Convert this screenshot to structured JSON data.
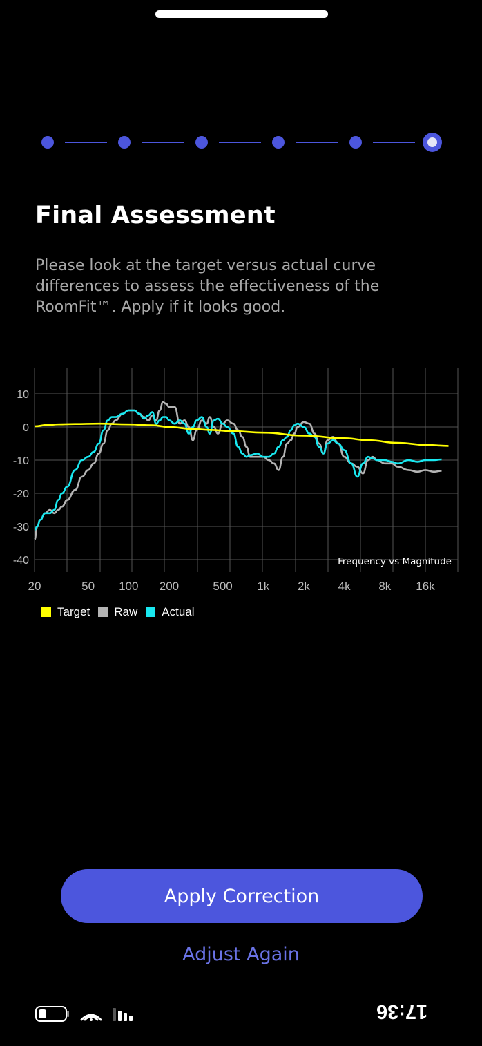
{
  "steps": {
    "count": 6,
    "active_index": 5
  },
  "header": {
    "title": "Final Assessment",
    "description": "Please look at the target versus actual curve differences to assess the effectiveness of the RoomFit™. Apply if it looks good."
  },
  "chart_data": {
    "type": "line",
    "title": "Frequency vs Magnitude",
    "x_scale": "log",
    "xlim": [
      20,
      25000
    ],
    "ylim": [
      -42,
      16
    ],
    "grid": true,
    "legend_position": "bottom-left",
    "x_ticks": [
      {
        "value": 20,
        "label": "20"
      },
      {
        "value": 50,
        "label": "50"
      },
      {
        "value": 100,
        "label": "100"
      },
      {
        "value": 200,
        "label": "200"
      },
      {
        "value": 500,
        "label": "500"
      },
      {
        "value": 1000,
        "label": "1k"
      },
      {
        "value": 2000,
        "label": "2k"
      },
      {
        "value": 4000,
        "label": "4k"
      },
      {
        "value": 8000,
        "label": "8k"
      },
      {
        "value": 16000,
        "label": "16k"
      }
    ],
    "y_ticks": [
      10,
      0,
      -10,
      -20,
      -30,
      -40
    ],
    "series": [
      {
        "name": "Target",
        "color": "#ffff00",
        "points": [
          [
            20,
            0.2
          ],
          [
            25,
            0.6
          ],
          [
            30,
            0.8
          ],
          [
            40,
            0.9
          ],
          [
            60,
            1.0
          ],
          [
            100,
            0.8
          ],
          [
            150,
            0.5
          ],
          [
            200,
            0
          ],
          [
            300,
            -0.6
          ],
          [
            400,
            -0.9
          ],
          [
            600,
            -1.3
          ],
          [
            1000,
            -1.7
          ],
          [
            2000,
            -2.6
          ],
          [
            4000,
            -3.4
          ],
          [
            6000,
            -4
          ],
          [
            10000,
            -4.8
          ],
          [
            16000,
            -5.4
          ],
          [
            22000,
            -5.7
          ]
        ]
      },
      {
        "name": "Raw",
        "color": "#b4b4b4",
        "points": [
          [
            20,
            -34
          ],
          [
            21,
            -30
          ],
          [
            22,
            -28
          ],
          [
            24,
            -26
          ],
          [
            26,
            -25
          ],
          [
            28,
            -26
          ],
          [
            30,
            -25
          ],
          [
            32,
            -24
          ],
          [
            35,
            -22
          ],
          [
            40,
            -19
          ],
          [
            45,
            -15
          ],
          [
            50,
            -13
          ],
          [
            55,
            -11
          ],
          [
            60,
            -8
          ],
          [
            65,
            -5
          ],
          [
            70,
            -1
          ],
          [
            75,
            1
          ],
          [
            80,
            2
          ],
          [
            90,
            4
          ],
          [
            100,
            5
          ],
          [
            110,
            5
          ],
          [
            120,
            4
          ],
          [
            130,
            3
          ],
          [
            140,
            2
          ],
          [
            150,
            3.5
          ],
          [
            160,
            2
          ],
          [
            170,
            5
          ],
          [
            180,
            7.5
          ],
          [
            190,
            7
          ],
          [
            200,
            6
          ],
          [
            220,
            6
          ],
          [
            240,
            1
          ],
          [
            260,
            2
          ],
          [
            280,
            0
          ],
          [
            300,
            -4
          ],
          [
            320,
            -1
          ],
          [
            350,
            2
          ],
          [
            380,
            1
          ],
          [
            400,
            3
          ],
          [
            430,
            0
          ],
          [
            460,
            -2
          ],
          [
            500,
            1
          ],
          [
            540,
            2
          ],
          [
            600,
            1
          ],
          [
            650,
            -1
          ],
          [
            700,
            -3
          ],
          [
            750,
            -6
          ],
          [
            800,
            -9
          ],
          [
            900,
            -9
          ],
          [
            1000,
            -9
          ],
          [
            1100,
            -10
          ],
          [
            1200,
            -11
          ],
          [
            1300,
            -13
          ],
          [
            1400,
            -9
          ],
          [
            1500,
            -5
          ],
          [
            1600,
            -4
          ],
          [
            1700,
            -2
          ],
          [
            1800,
            0
          ],
          [
            2000,
            1.5
          ],
          [
            2200,
            1
          ],
          [
            2400,
            -2
          ],
          [
            2600,
            -5
          ],
          [
            2800,
            -8
          ],
          [
            3000,
            -4
          ],
          [
            3300,
            -3
          ],
          [
            3600,
            -5
          ],
          [
            4000,
            -9
          ],
          [
            4500,
            -11
          ],
          [
            5000,
            -12
          ],
          [
            5500,
            -14
          ],
          [
            6000,
            -10
          ],
          [
            6500,
            -9
          ],
          [
            7000,
            -10
          ],
          [
            8000,
            -11
          ],
          [
            9000,
            -11
          ],
          [
            10000,
            -12
          ],
          [
            12000,
            -13
          ],
          [
            14000,
            -13.5
          ],
          [
            16000,
            -13
          ],
          [
            18000,
            -13.5
          ],
          [
            20000,
            -13.2
          ]
        ]
      },
      {
        "name": "Actual",
        "color": "#19e8f0",
        "points": [
          [
            20,
            -31
          ],
          [
            21,
            -30
          ],
          [
            22,
            -28
          ],
          [
            24,
            -26
          ],
          [
            26,
            -26
          ],
          [
            28,
            -25
          ],
          [
            30,
            -22
          ],
          [
            32,
            -20
          ],
          [
            35,
            -18
          ],
          [
            40,
            -13
          ],
          [
            45,
            -10
          ],
          [
            50,
            -9
          ],
          [
            55,
            -7.5
          ],
          [
            60,
            -5
          ],
          [
            65,
            -1
          ],
          [
            70,
            2
          ],
          [
            75,
            3
          ],
          [
            80,
            3
          ],
          [
            90,
            4
          ],
          [
            100,
            5
          ],
          [
            110,
            5
          ],
          [
            120,
            4
          ],
          [
            130,
            2.5
          ],
          [
            140,
            3.5
          ],
          [
            150,
            4.5
          ],
          [
            160,
            1
          ],
          [
            170,
            2
          ],
          [
            180,
            3
          ],
          [
            190,
            3
          ],
          [
            200,
            2
          ],
          [
            220,
            1
          ],
          [
            240,
            2
          ],
          [
            260,
            1
          ],
          [
            280,
            -2
          ],
          [
            300,
            0
          ],
          [
            320,
            2
          ],
          [
            350,
            3
          ],
          [
            380,
            0
          ],
          [
            400,
            -2
          ],
          [
            430,
            2
          ],
          [
            460,
            2.5
          ],
          [
            500,
            1
          ],
          [
            540,
            0
          ],
          [
            600,
            -2
          ],
          [
            650,
            -6
          ],
          [
            700,
            -8
          ],
          [
            750,
            -9
          ],
          [
            800,
            -8.5
          ],
          [
            900,
            -8
          ],
          [
            1000,
            -9
          ],
          [
            1100,
            -9
          ],
          [
            1200,
            -8
          ],
          [
            1300,
            -6
          ],
          [
            1400,
            -4
          ],
          [
            1500,
            -3
          ],
          [
            1600,
            -1
          ],
          [
            1700,
            0.5
          ],
          [
            1800,
            1
          ],
          [
            2000,
            0
          ],
          [
            2200,
            -2
          ],
          [
            2400,
            -3
          ],
          [
            2600,
            -6
          ],
          [
            2800,
            -8
          ],
          [
            3000,
            -5
          ],
          [
            3300,
            -4
          ],
          [
            3600,
            -5
          ],
          [
            4000,
            -7
          ],
          [
            4500,
            -11
          ],
          [
            5000,
            -15
          ],
          [
            5500,
            -11
          ],
          [
            6000,
            -9
          ],
          [
            6500,
            -9.5
          ],
          [
            7000,
            -10
          ],
          [
            8000,
            -10
          ],
          [
            9000,
            -10.5
          ],
          [
            10000,
            -11
          ],
          [
            12000,
            -10
          ],
          [
            14000,
            -10.5
          ],
          [
            16000,
            -10
          ],
          [
            18000,
            -10
          ],
          [
            20000,
            -9.8
          ]
        ]
      }
    ]
  },
  "buttons": {
    "apply_label": "Apply Correction",
    "adjust_label": "Adjust Again"
  },
  "status_bar": {
    "time": "17:36"
  }
}
